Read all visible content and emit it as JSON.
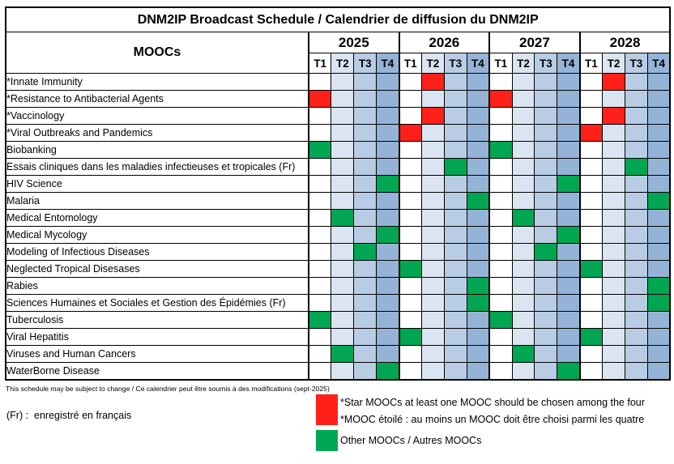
{
  "header": {
    "title": "DNM2IP Broadcast Schedule / Calendrier de diffusion du DNM2IP",
    "moocs_label": "MOOCs",
    "years": [
      "2025",
      "2026",
      "2027",
      "2028"
    ],
    "quarters": [
      "T1",
      "T2",
      "T3",
      "T4"
    ]
  },
  "colors": {
    "star_red": "#FF2019",
    "other_green": "#00A651",
    "quarter_shades": [
      "#FFFFFF",
      "#DBE5F1",
      "#B8CCE4",
      "#95B3D7"
    ],
    "border": "#000000"
  },
  "chart_data": {
    "type": "table",
    "title": "DNM2IP Broadcast Schedule / Calendrier de diffusion du DNM2IP",
    "row_header": "MOOCs",
    "columns": [
      "2025-T1",
      "2025-T2",
      "2025-T3",
      "2025-T4",
      "2026-T1",
      "2026-T2",
      "2026-T3",
      "2026-T4",
      "2027-T1",
      "2027-T2",
      "2027-T3",
      "2027-T4",
      "2028-T1",
      "2028-T2",
      "2028-T3",
      "2028-T4"
    ],
    "cell_colors": {
      "star": "#FF2019",
      "other": "#00A651"
    },
    "quarter_shades": [
      "#FFFFFF",
      "#DBE5F1",
      "#B8CCE4",
      "#95B3D7"
    ],
    "rows": [
      {
        "label": "*Innate Immunity",
        "category": "star",
        "marks": [
          "2026-T2",
          "2028-T2"
        ]
      },
      {
        "label": "*Resistance to Antibacterial Agents",
        "category": "star",
        "marks": [
          "2025-T1",
          "2027-T1"
        ]
      },
      {
        "label": "*Vaccinology",
        "category": "star",
        "marks": [
          "2026-T2",
          "2028-T2"
        ]
      },
      {
        "label": "*Viral Outbreaks and Pandemics",
        "category": "star",
        "marks": [
          "2026-T1",
          "2028-T1"
        ]
      },
      {
        "label": "Biobanking",
        "category": "other",
        "marks": [
          "2025-T1",
          "2027-T1"
        ]
      },
      {
        "label": "Essais cliniques dans les maladies infectieuses et tropicales (Fr)",
        "category": "other",
        "marks": [
          "2026-T3",
          "2028-T3"
        ]
      },
      {
        "label": "HIV Science",
        "category": "other",
        "marks": [
          "2025-T4",
          "2027-T4"
        ]
      },
      {
        "label": "Malaria",
        "category": "other",
        "marks": [
          "2026-T4",
          "2028-T4"
        ]
      },
      {
        "label": "Medical Entomology",
        "category": "other",
        "marks": [
          "2025-T2",
          "2027-T2"
        ]
      },
      {
        "label": "Medical Mycology",
        "category": "other",
        "marks": [
          "2025-T4",
          "2027-T4"
        ]
      },
      {
        "label": "Modeling of Infectious Diseases",
        "category": "other",
        "marks": [
          "2025-T3",
          "2027-T3"
        ]
      },
      {
        "label": "Neglected Tropical Disesases",
        "category": "other",
        "marks": [
          "2026-T1",
          "2028-T1"
        ]
      },
      {
        "label": "Rabies",
        "category": "other",
        "marks": [
          "2026-T4",
          "2028-T4"
        ]
      },
      {
        "label": "Sciences Humaines et Sociales et Gestion des Épidémies (Fr)",
        "category": "other",
        "marks": [
          "2026-T4",
          "2028-T4"
        ]
      },
      {
        "label": "Tuberculosis",
        "category": "other",
        "marks": [
          "2025-T1",
          "2027-T1"
        ]
      },
      {
        "label": "Viral Hepatitis",
        "category": "other",
        "marks": [
          "2026-T1",
          "2028-T1"
        ]
      },
      {
        "label": "Viruses and Human Cancers",
        "category": "other",
        "marks": [
          "2025-T2",
          "2027-T2"
        ]
      },
      {
        "label": "WaterBorne Disease",
        "category": "other",
        "marks": [
          "2025-T4",
          "2027-T4"
        ]
      }
    ]
  },
  "footer": {
    "note": "This schedule may be subject to change / Ce calendrier peut être soumis à des modifications (sept-2025)",
    "fr_note": "(Fr) :  enregistré en français"
  },
  "legend": {
    "star": {
      "line1": "*Star MOOCs at least one MOOC should be chosen among the four",
      "line2": "*MOOC étoilé : au moins un MOOC doit être choisi parmi les quatre"
    },
    "other": {
      "text": "Other MOOCs / Autres MOOCs"
    }
  }
}
